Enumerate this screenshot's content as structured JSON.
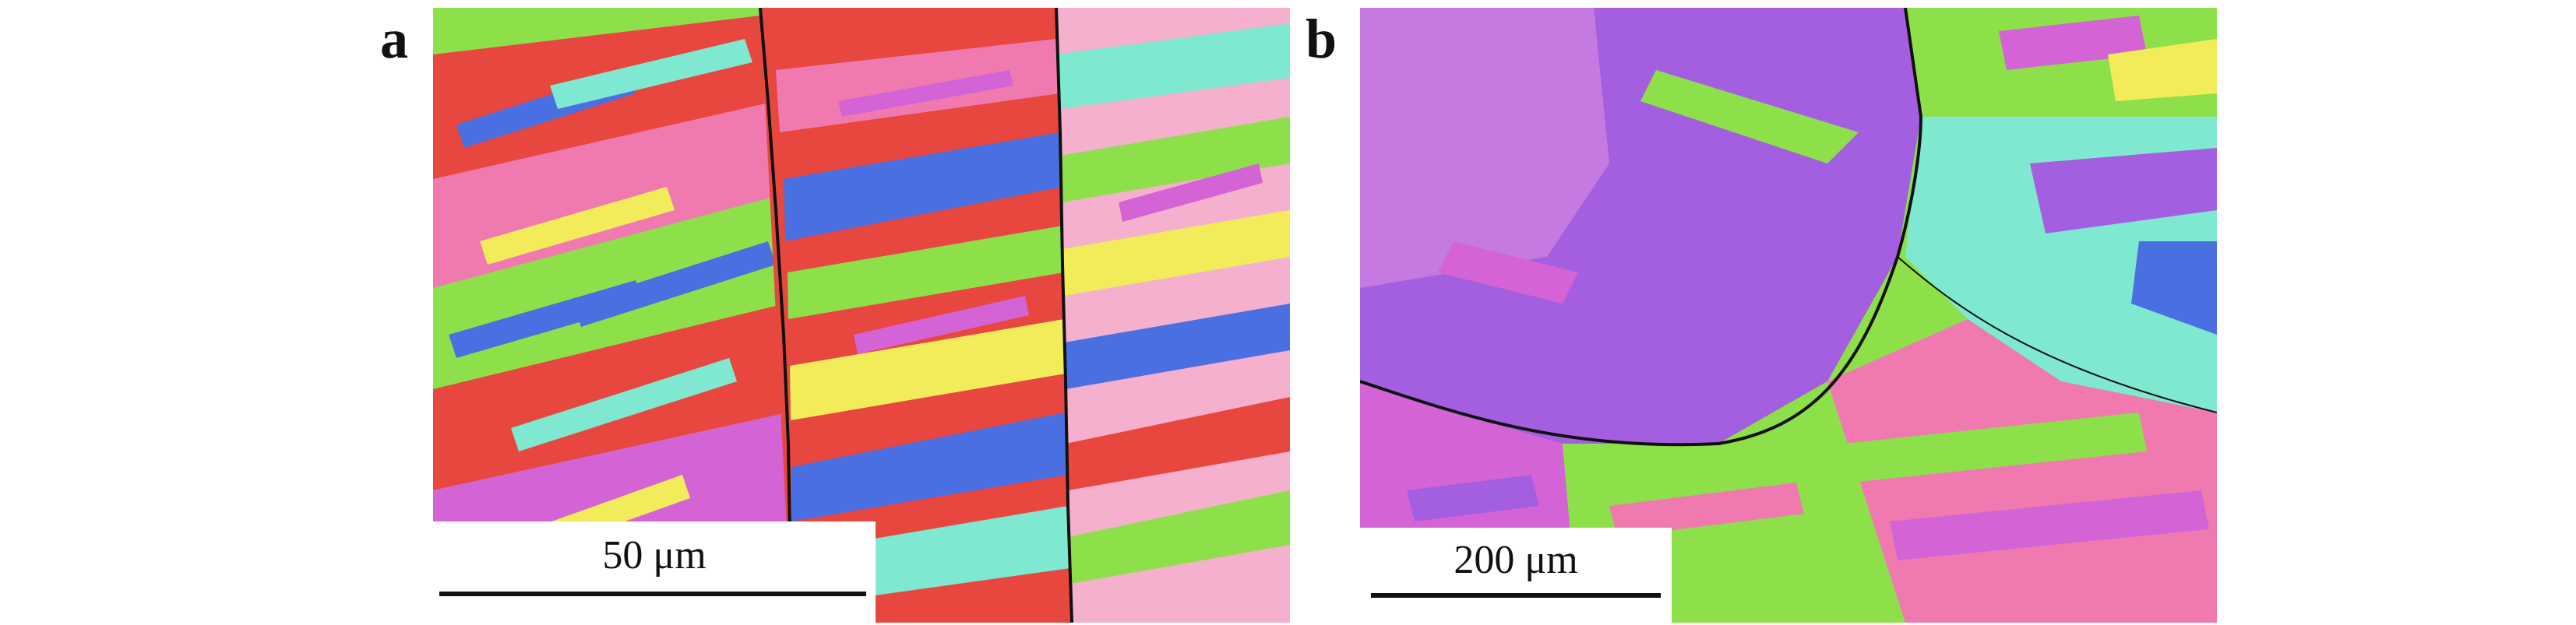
{
  "figure": {
    "panels": [
      {
        "letter": "a",
        "scale_bar_label": "50 μm",
        "image_icon": "ebsd-orientation-map-icon"
      },
      {
        "letter": "b",
        "scale_bar_label": "200 μm",
        "image_icon": "ebsd-orientation-map-icon"
      }
    ]
  },
  "colors": {
    "red": "#e8473f",
    "green": "#8ee04a",
    "blue": "#4a6fe0",
    "magenta": "#d463d6",
    "violet": "#a45fe0",
    "pink": "#f07ab0",
    "cyan": "#7fe8d0",
    "yellow": "#f2ec5a",
    "boundary": "#111111"
  }
}
